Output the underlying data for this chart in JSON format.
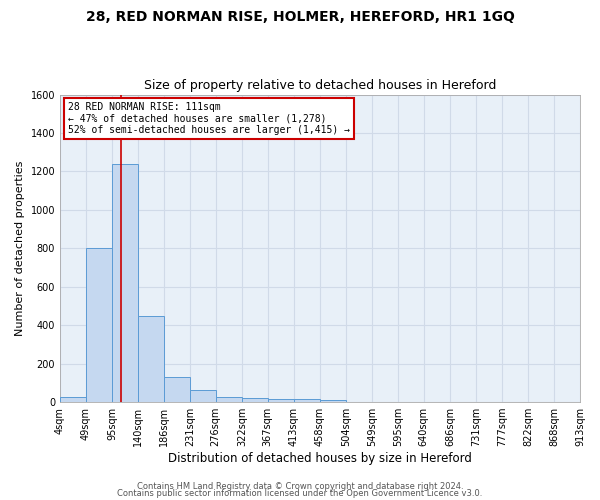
{
  "title": "28, RED NORMAN RISE, HOLMER, HEREFORD, HR1 1GQ",
  "subtitle": "Size of property relative to detached houses in Hereford",
  "xlabel": "Distribution of detached houses by size in Hereford",
  "ylabel": "Number of detached properties",
  "bin_edges": [
    4,
    49,
    95,
    140,
    186,
    231,
    276,
    322,
    367,
    413,
    458,
    504,
    549,
    595,
    640,
    686,
    731,
    777,
    822,
    868,
    913
  ],
  "bar_heights": [
    25,
    800,
    1240,
    450,
    130,
    65,
    25,
    20,
    15,
    15,
    10,
    0,
    0,
    0,
    0,
    0,
    0,
    0,
    0,
    0
  ],
  "bar_color": "#c5d8f0",
  "bar_edgecolor": "#5b9bd5",
  "background_color": "#e8f0f8",
  "grid_color": "#d0dae8",
  "fig_background": "#ffffff",
  "red_line_x": 111,
  "annotation_title": "28 RED NORMAN RISE: 111sqm",
  "annotation_line1": "← 47% of detached houses are smaller (1,278)",
  "annotation_line2": "52% of semi-detached houses are larger (1,415) →",
  "annotation_box_color": "#ffffff",
  "annotation_box_edgecolor": "#cc0000",
  "red_line_color": "#cc0000",
  "ylim": [
    0,
    1600
  ],
  "yticks": [
    0,
    200,
    400,
    600,
    800,
    1000,
    1200,
    1400,
    1600
  ],
  "footnote1": "Contains HM Land Registry data © Crown copyright and database right 2024.",
  "footnote2": "Contains public sector information licensed under the Open Government Licence v3.0.",
  "title_fontsize": 10,
  "subtitle_fontsize": 9,
  "tick_label_fontsize": 7,
  "ylabel_fontsize": 8,
  "xlabel_fontsize": 8.5,
  "annot_fontsize": 7,
  "footnote_fontsize": 6
}
